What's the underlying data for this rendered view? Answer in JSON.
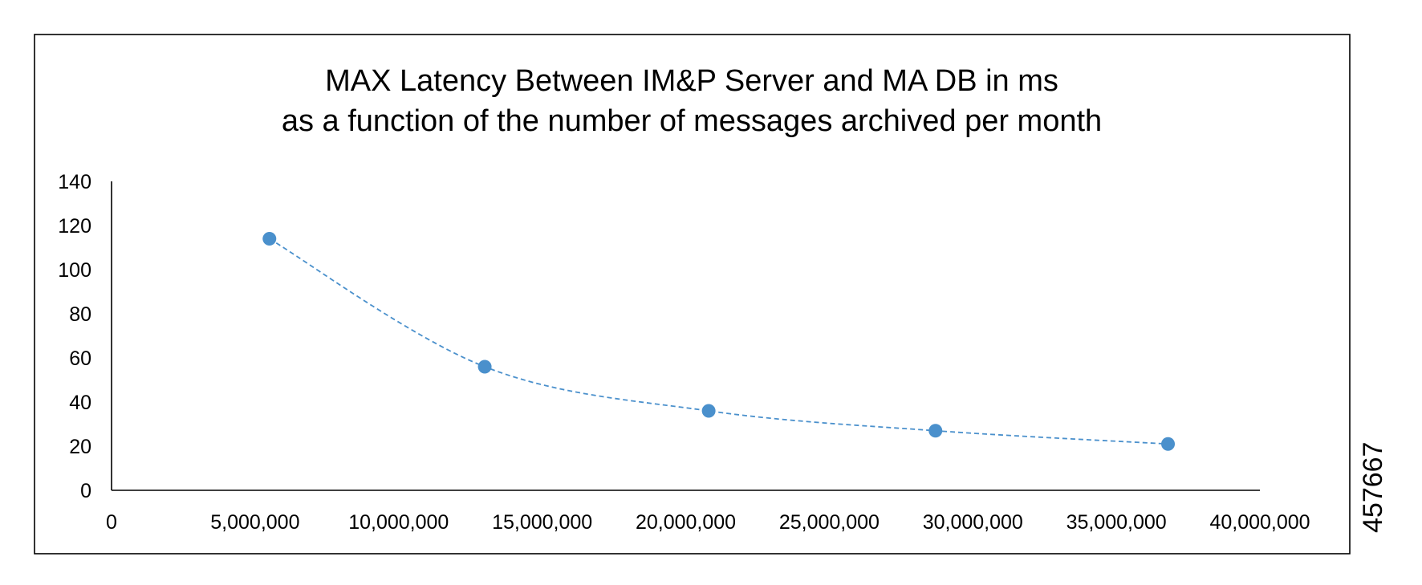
{
  "figure_id": "457667",
  "chart_data": {
    "type": "scatter",
    "title": "MAX Latency Between IM&P Server and MA DB in ms",
    "subtitle": "as a function of the number of messages archived per month",
    "xlabel": "",
    "ylabel": "",
    "xlim": [
      0,
      40000000
    ],
    "ylim": [
      0,
      140
    ],
    "x_ticks": [
      0,
      5000000,
      10000000,
      15000000,
      20000000,
      25000000,
      30000000,
      35000000,
      40000000
    ],
    "x_tick_labels": [
      "0",
      "5,000,000",
      "10,000,000",
      "15,000,000",
      "20,000,000",
      "25,000,000",
      "30,000,000",
      "35,000,000",
      "40,000,000"
    ],
    "y_ticks": [
      0,
      20,
      40,
      60,
      80,
      100,
      120,
      140
    ],
    "y_tick_labels": [
      "0",
      "20",
      "40",
      "60",
      "80",
      "100",
      "120",
      "140"
    ],
    "grid": false,
    "legend": "none",
    "series": [
      {
        "x": [
          5500000,
          13000000,
          20800000,
          28700000,
          36800000
        ],
        "y": [
          114,
          56,
          36,
          27,
          21
        ],
        "color": "#4a90cc",
        "trendline": "dashed"
      }
    ]
  }
}
